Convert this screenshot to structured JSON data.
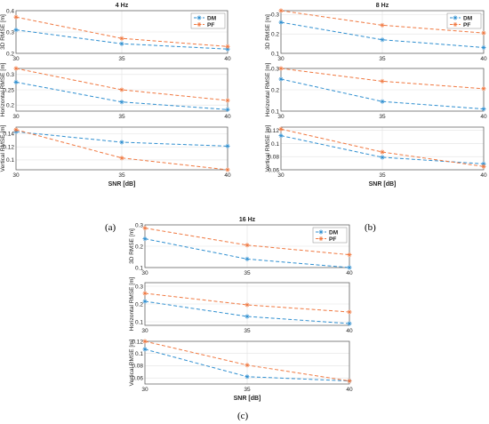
{
  "colors": {
    "DM": "#2f8fd0",
    "PF": "#f07840",
    "grid": "#e2e2e2",
    "axis": "#555555"
  },
  "captions": {
    "a": "(a)",
    "b": "(b)",
    "c": "(c)"
  },
  "chart_data": [
    {
      "id": "a",
      "type": "line",
      "title": "4 Hz",
      "xlabel": "SNR [dB]",
      "x": [
        30,
        35,
        40
      ],
      "legend": {
        "position": "top-right",
        "entries": [
          "DM",
          "PF"
        ]
      },
      "grid": true,
      "subplots": [
        {
          "ylabel": "3D RMSE [m]",
          "ylim": [
            0.2,
            0.4
          ],
          "yticks": [
            "0.2",
            "0.3",
            "0.4"
          ],
          "series": [
            {
              "name": "DM",
              "values": [
                0.31,
                0.245,
                0.22
              ]
            },
            {
              "name": "PF",
              "values": [
                0.37,
                0.27,
                0.232
              ]
            }
          ]
        },
        {
          "ylabel": "Horizontal RMSE [m]",
          "ylim": [
            0.18,
            0.32
          ],
          "yticks": [
            "0.2",
            "0.25",
            "0.3"
          ],
          "series": [
            {
              "name": "DM",
              "values": [
                0.275,
                0.21,
                0.185
              ]
            },
            {
              "name": "PF",
              "values": [
                0.32,
                0.25,
                0.215
              ]
            }
          ]
        },
        {
          "ylabel": "Vertical RMSE [m]",
          "ylim": [
            0.085,
            0.15
          ],
          "yticks": [
            "0.1",
            "0.12",
            "0.14"
          ],
          "series": [
            {
              "name": "DM",
              "values": [
                0.143,
                0.127,
                0.121
              ]
            },
            {
              "name": "PF",
              "values": [
                0.146,
                0.103,
                0.085
              ]
            }
          ]
        }
      ]
    },
    {
      "id": "b",
      "type": "line",
      "title": "8 Hz",
      "xlabel": "SNR [dB]",
      "x": [
        30,
        35,
        40
      ],
      "legend": {
        "position": "top-right",
        "entries": [
          "DM",
          "PF"
        ]
      },
      "grid": true,
      "subplots": [
        {
          "ylabel": "3D RMSE [m]",
          "ylim": [
            0.1,
            0.32
          ],
          "yticks": [
            "0.1",
            "0.2",
            "0.3"
          ],
          "series": [
            {
              "name": "DM",
              "values": [
                0.26,
                0.17,
                0.13
              ]
            },
            {
              "name": "PF",
              "values": [
                0.32,
                0.245,
                0.205
              ]
            }
          ]
        },
        {
          "ylabel": "Horizontal RMSE [m]",
          "ylim": [
            0.1,
            0.3
          ],
          "yticks": [
            "0.1",
            "0.2",
            "0.3"
          ],
          "series": [
            {
              "name": "DM",
              "values": [
                0.25,
                0.145,
                0.11
              ]
            },
            {
              "name": "PF",
              "values": [
                0.3,
                0.24,
                0.205
              ]
            }
          ]
        },
        {
          "ylabel": "Vertical RMSE [m]",
          "ylim": [
            0.06,
            0.125
          ],
          "yticks": [
            "0.06",
            "0.08",
            "0.1",
            "0.12"
          ],
          "series": [
            {
              "name": "DM",
              "values": [
                0.112,
                0.079,
                0.069
              ]
            },
            {
              "name": "PF",
              "values": [
                0.122,
                0.087,
                0.065
              ]
            }
          ]
        }
      ]
    },
    {
      "id": "c",
      "type": "line",
      "title": "16 Hz",
      "xlabel": "SNR [dB]",
      "x": [
        30,
        35,
        40
      ],
      "legend": {
        "position": "top-right",
        "entries": [
          "DM",
          "PF"
        ]
      },
      "grid": true,
      "subplots": [
        {
          "ylabel": "3D RMSE [m]",
          "ylim": [
            0.1,
            0.3
          ],
          "yticks": [
            "0.1",
            "0.2",
            "0.3"
          ],
          "series": [
            {
              "name": "DM",
              "values": [
                0.235,
                0.14,
                0.1
              ]
            },
            {
              "name": "PF",
              "values": [
                0.285,
                0.205,
                0.16
              ]
            }
          ]
        },
        {
          "ylabel": "Horizontal RMSE [m]",
          "ylim": [
            0.08,
            0.32
          ],
          "yticks": [
            "0.1",
            "0.2",
            "0.3"
          ],
          "series": [
            {
              "name": "DM",
              "values": [
                0.215,
                0.13,
                0.09
              ]
            },
            {
              "name": "PF",
              "values": [
                0.26,
                0.195,
                0.155
              ]
            }
          ]
        },
        {
          "ylabel": "Vertical RMSE [m]",
          "ylim": [
            0.05,
            0.12
          ],
          "yticks": [
            "0.06",
            "0.08",
            "0.1",
            "0.12"
          ],
          "series": [
            {
              "name": "DM",
              "values": [
                0.107,
                0.062,
                0.055
              ]
            },
            {
              "name": "PF",
              "values": [
                0.12,
                0.081,
                0.055
              ]
            }
          ]
        }
      ]
    }
  ]
}
